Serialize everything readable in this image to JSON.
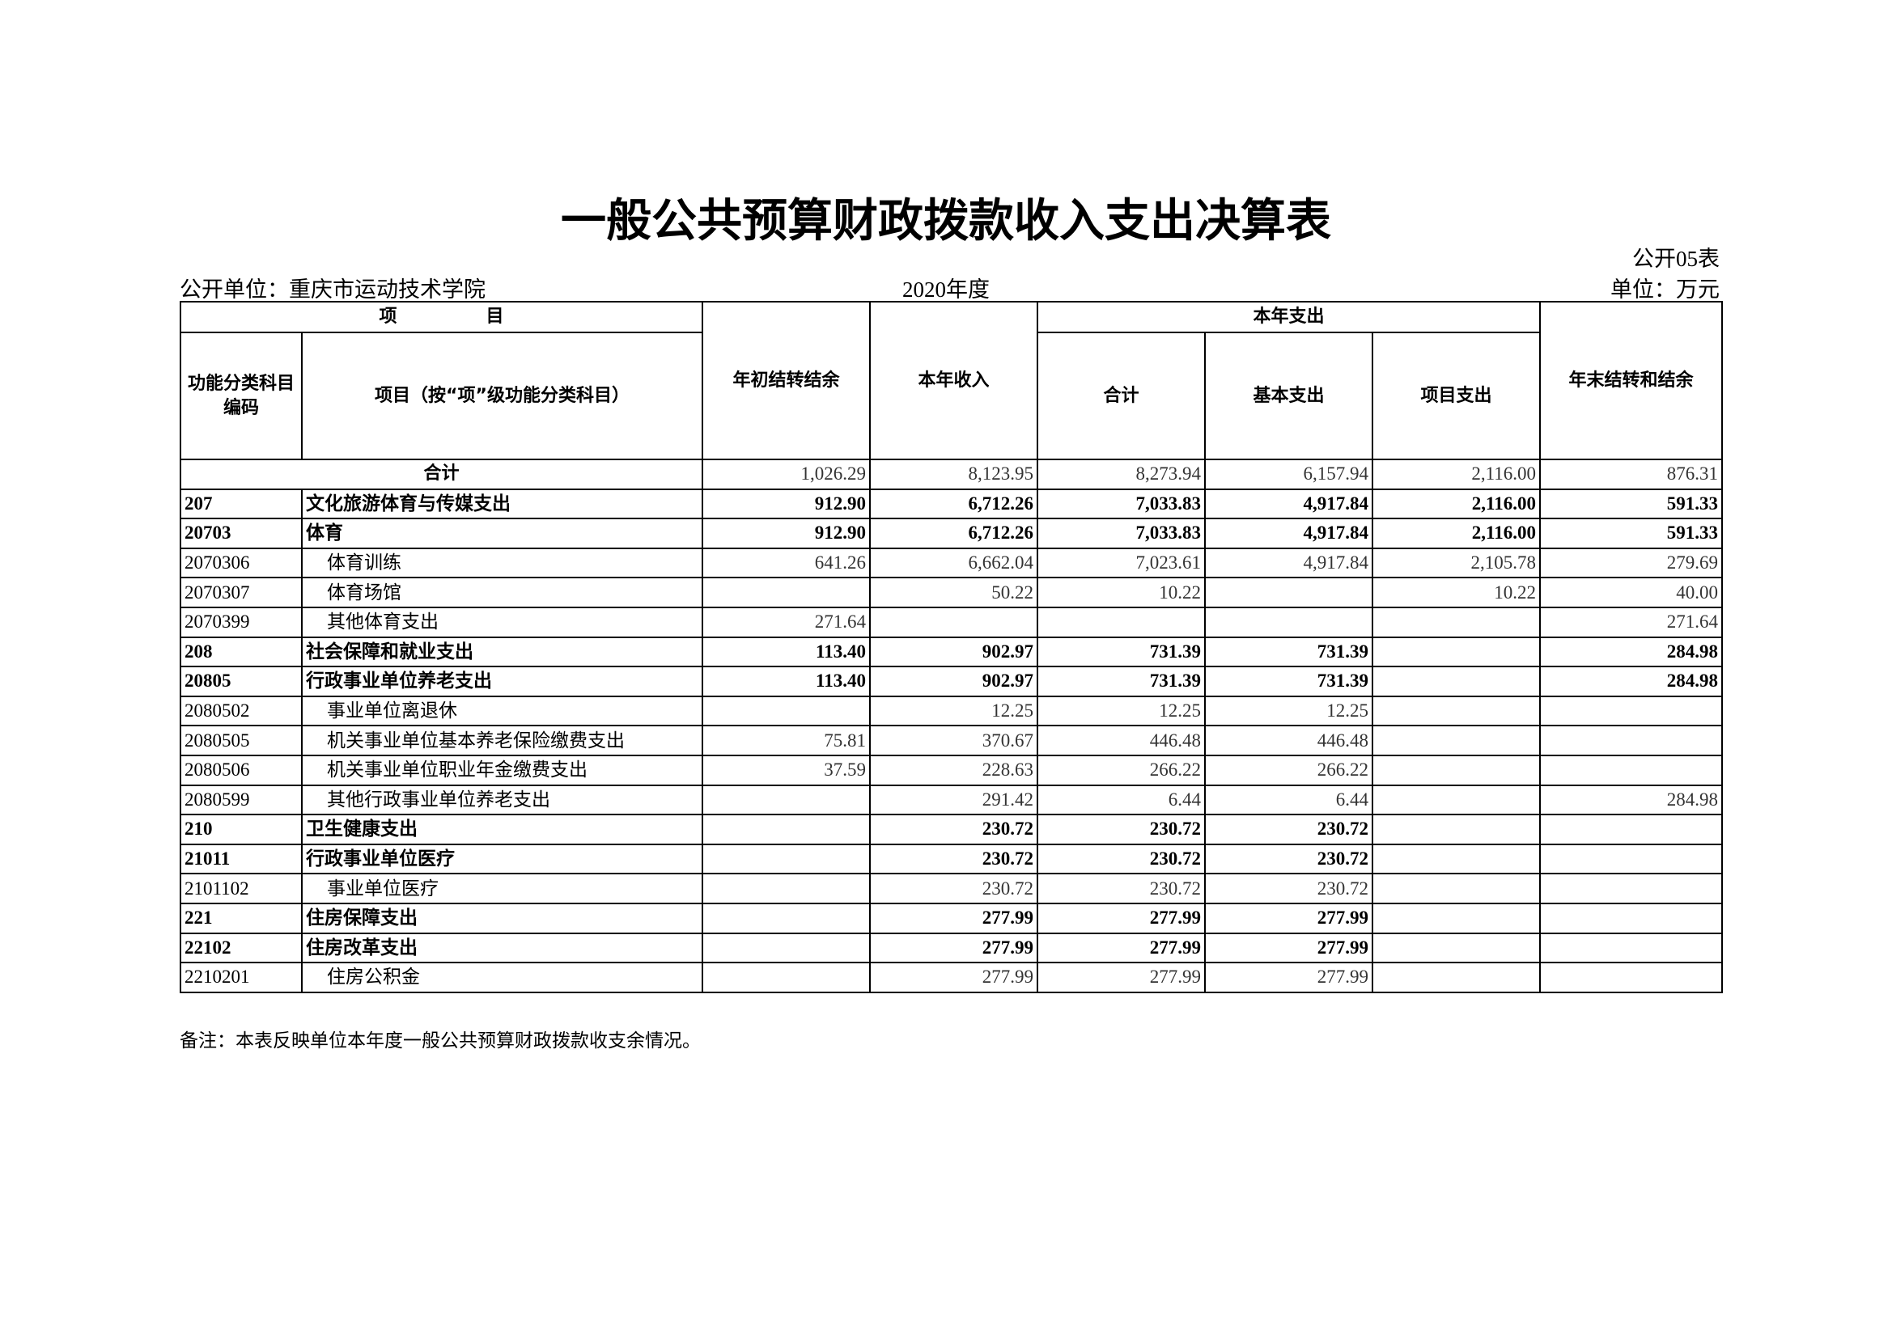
{
  "header": {
    "title": "一般公共预算财政拨款收入支出决算表",
    "form_no": "公开05表",
    "unit_org": "公开单位：重庆市运动技术学院",
    "year": "2020年度",
    "unit": "单位：万元"
  },
  "table": {
    "head": {
      "item": "项　　　　　目",
      "code": "功能分类科目编码",
      "name": "项目（按“项”级功能分类科目）",
      "opening": "年初结转结余",
      "income": "本年收入",
      "expense": "本年支出",
      "total": "合计",
      "basic": "基本支出",
      "project": "项目支出",
      "closing": "年末结转和结余"
    },
    "total_row": {
      "label": "合计",
      "values": [
        "1,026.29",
        "8,123.95",
        "8,273.94",
        "6,157.94",
        "2,116.00",
        "876.31"
      ]
    },
    "rows": [
      [
        "207",
        "文化旅游体育与传媒支出",
        "912.90",
        "6,712.26",
        "7,033.83",
        "4,917.84",
        "2,116.00",
        "591.33"
      ],
      [
        "20703",
        "体育",
        "912.90",
        "6,712.26",
        "7,033.83",
        "4,917.84",
        "2,116.00",
        "591.33"
      ],
      [
        "2070306",
        "体育训练",
        "641.26",
        "6,662.04",
        "7,023.61",
        "4,917.84",
        "2,105.78",
        "279.69"
      ],
      [
        "2070307",
        "体育场馆",
        null,
        "50.22",
        "10.22",
        null,
        "10.22",
        "40.00"
      ],
      [
        "2070399",
        "其他体育支出",
        "271.64",
        null,
        null,
        null,
        null,
        "271.64"
      ],
      [
        "208",
        "社会保障和就业支出",
        "113.40",
        "902.97",
        "731.39",
        "731.39",
        null,
        "284.98"
      ],
      [
        "20805",
        "行政事业单位养老支出",
        "113.40",
        "902.97",
        "731.39",
        "731.39",
        null,
        "284.98"
      ],
      [
        "2080502",
        "事业单位离退休",
        null,
        "12.25",
        "12.25",
        "12.25",
        null,
        null
      ],
      [
        "2080505",
        "机关事业单位基本养老保险缴费支出",
        "75.81",
        "370.67",
        "446.48",
        "446.48",
        null,
        null
      ],
      [
        "2080506",
        "机关事业单位职业年金缴费支出",
        "37.59",
        "228.63",
        "266.22",
        "266.22",
        null,
        null
      ],
      [
        "2080599",
        "其他行政事业单位养老支出",
        null,
        "291.42",
        "6.44",
        "6.44",
        null,
        "284.98"
      ],
      [
        "210",
        "卫生健康支出",
        null,
        "230.72",
        "230.72",
        "230.72",
        null,
        null
      ],
      [
        "21011",
        "行政事业单位医疗",
        null,
        "230.72",
        "230.72",
        "230.72",
        null,
        null
      ],
      [
        "2101102",
        "事业单位医疗",
        null,
        "230.72",
        "230.72",
        "230.72",
        null,
        null
      ],
      [
        "221",
        "住房保障支出",
        null,
        "277.99",
        "277.99",
        "277.99",
        null,
        null
      ],
      [
        "22102",
        "住房改革支出",
        null,
        "277.99",
        "277.99",
        "277.99",
        null,
        null
      ],
      [
        "2210201",
        "住房公积金",
        null,
        "277.99",
        "277.99",
        "277.99",
        null,
        null
      ]
    ]
  },
  "footer": {
    "note": "备注：本表反映单位本年度一般公共预算财政拨款收支余情况。"
  }
}
